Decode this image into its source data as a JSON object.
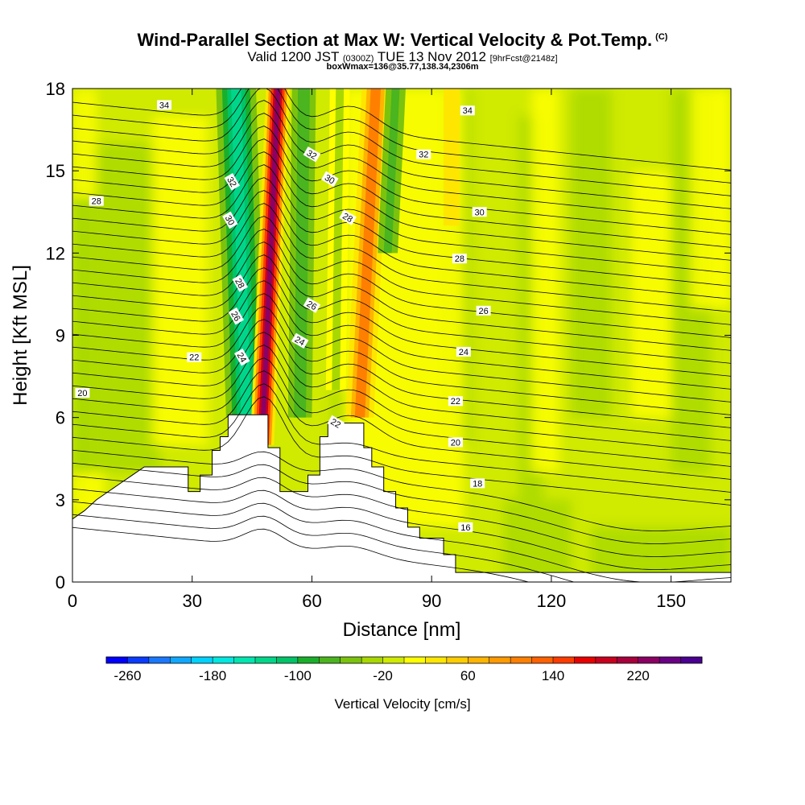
{
  "header": {
    "title": "Wind-Parallel Section at Max W: Vertical Velocity & Pot.Temp.",
    "copyright": "(C)",
    "valid_prefix": "Valid 1200 JST",
    "valid_utc": "(0300Z)",
    "valid_date": "TUE 13 Nov 2012",
    "forecast": "[9hrFcst@2148z]",
    "box_info": "boxWmax=136@35.77,138.34,2306m"
  },
  "chart_data": {
    "type": "heatmap",
    "title": "Wind-Parallel Section at Max W: Vertical Velocity & Pot.Temp.",
    "xlabel": "Distance [nm]",
    "ylabel": "Height [Kft MSL]",
    "xlim": [
      0,
      165
    ],
    "ylim": [
      0,
      18
    ],
    "x_ticks": [
      "0",
      "30",
      "60",
      "90",
      "120",
      "150"
    ],
    "y_ticks": [
      "0",
      "3",
      "6",
      "9",
      "12",
      "15",
      "18"
    ],
    "colorbar": {
      "label": "Vertical Velocity [cm/s]",
      "ticks": [
        "-260",
        "-180",
        "-100",
        "-20",
        "60",
        "140",
        "220"
      ],
      "min": -280,
      "max": 280,
      "step": 20,
      "colors": [
        "#0000ff",
        "#0a3cff",
        "#1a78ff",
        "#10a8ff",
        "#00d2ff",
        "#00e8e0",
        "#00e6b0",
        "#00d68a",
        "#00c468",
        "#1aaf2a",
        "#4ab51e",
        "#7cc30e",
        "#a8d800",
        "#d0ea00",
        "#ffff00",
        "#ffe600",
        "#ffcc00",
        "#ffb400",
        "#ff9a00",
        "#ff8000",
        "#ff6200",
        "#ff3c00",
        "#e80000",
        "#c8001e",
        "#a8003c",
        "#8c0064",
        "#6a0084",
        "#4a0090"
      ]
    },
    "velocity_features": [
      {
        "x": 45,
        "y": 14,
        "w_cm_s": -120
      },
      {
        "x": 52,
        "y": 13,
        "w_cm_s": 200
      },
      {
        "x": 60,
        "y": 14,
        "w_cm_s": -50
      },
      {
        "x": 76,
        "y": 12,
        "w_cm_s": 100
      },
      {
        "x": 80,
        "y": 16,
        "w_cm_s": -50
      },
      {
        "x": 94,
        "y": 15,
        "w_cm_s": 20
      },
      {
        "x": 140,
        "y": 10,
        "w_cm_s": 10
      }
    ],
    "terrain_kft": [
      [
        0,
        2.3
      ],
      [
        3,
        2.6
      ],
      [
        6,
        3.0
      ],
      [
        9,
        3.3
      ],
      [
        12,
        3.6
      ],
      [
        15,
        3.9
      ],
      [
        18,
        4.2
      ],
      [
        29,
        4.2
      ],
      [
        29,
        3.3
      ],
      [
        32,
        3.3
      ],
      [
        32,
        3.9
      ],
      [
        35,
        3.9
      ],
      [
        35,
        4.8
      ],
      [
        37,
        4.8
      ],
      [
        37,
        5.3
      ],
      [
        39,
        5.3
      ],
      [
        39,
        6.1
      ],
      [
        49,
        6.1
      ],
      [
        49,
        4.9
      ],
      [
        52,
        4.9
      ],
      [
        52,
        3.3
      ],
      [
        59,
        3.3
      ],
      [
        59,
        3.9
      ],
      [
        62,
        3.9
      ],
      [
        62,
        5.3
      ],
      [
        64,
        5.3
      ],
      [
        64,
        5.8
      ],
      [
        73,
        5.8
      ],
      [
        73,
        4.9
      ],
      [
        75,
        4.9
      ],
      [
        75,
        4.2
      ],
      [
        78,
        4.2
      ],
      [
        78,
        3.3
      ],
      [
        81,
        3.3
      ],
      [
        81,
        2.7
      ],
      [
        84,
        2.7
      ],
      [
        84,
        2.0
      ],
      [
        87,
        2.0
      ],
      [
        87,
        1.6
      ],
      [
        93,
        1.6
      ],
      [
        93,
        1.0
      ],
      [
        96,
        1.0
      ],
      [
        96,
        0.35
      ],
      [
        165,
        0.35
      ]
    ],
    "theta_contours": [
      {
        "level": "16",
        "label_at": [
          98.5,
          2.0
        ]
      },
      {
        "level": "18",
        "label_at": [
          101.5,
          3.6
        ]
      },
      {
        "level": "20",
        "label_at": [
          2.5,
          6.9
        ]
      },
      {
        "level": "20",
        "label_at": [
          96,
          5.1
        ]
      },
      {
        "level": "22",
        "label_at": [
          30.5,
          8.2
        ]
      },
      {
        "level": "22",
        "label_at": [
          66,
          5.8
        ]
      },
      {
        "level": "22",
        "label_at": [
          96,
          6.6
        ]
      },
      {
        "level": "24",
        "label_at": [
          42.5,
          8.2
        ]
      },
      {
        "level": "24",
        "label_at": [
          57,
          8.8
        ]
      },
      {
        "level": "24",
        "label_at": [
          98,
          8.4
        ]
      },
      {
        "level": "26",
        "label_at": [
          41,
          9.7
        ]
      },
      {
        "level": "26",
        "label_at": [
          60,
          10.1
        ]
      },
      {
        "level": "26",
        "label_at": [
          103,
          9.9
        ]
      },
      {
        "level": "28",
        "label_at": [
          6,
          13.9
        ]
      },
      {
        "level": "28",
        "label_at": [
          42,
          10.9
        ]
      },
      {
        "level": "28",
        "label_at": [
          69,
          13.3
        ]
      },
      {
        "level": "28",
        "label_at": [
          97,
          11.8
        ]
      },
      {
        "level": "30",
        "label_at": [
          39.5,
          13.2
        ]
      },
      {
        "level": "30",
        "label_at": [
          64.5,
          14.7
        ]
      },
      {
        "level": "30",
        "label_at": [
          102,
          13.5
        ]
      },
      {
        "level": "32",
        "label_at": [
          40,
          14.6
        ]
      },
      {
        "level": "32",
        "label_at": [
          60,
          15.6
        ]
      },
      {
        "level": "32",
        "label_at": [
          88,
          15.6
        ]
      },
      {
        "level": "34",
        "label_at": [
          23,
          17.4
        ]
      },
      {
        "level": "34",
        "label_at": [
          99,
          17.2
        ]
      }
    ]
  }
}
